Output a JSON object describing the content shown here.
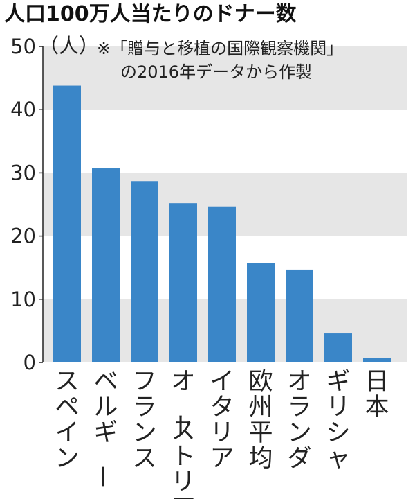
{
  "chart_data": {
    "type": "bar",
    "title": "人口100万人当たりのドナー数",
    "unit_label": "（人）",
    "note_lines": [
      "※「贈与と移植の国際観察機関」",
      "の2016年データから作製"
    ],
    "categories": [
      "スペイン",
      "ベルギー",
      "フランス",
      "オーストリア",
      "イタリア",
      "欧州平均",
      "オランダ",
      "ギリシャ",
      "日本"
    ],
    "values": [
      43.8,
      30.7,
      28.7,
      25.2,
      24.7,
      15.7,
      14.7,
      4.6,
      0.7
    ],
    "ylim": [
      0,
      50
    ],
    "yticks": [
      0,
      10,
      20,
      30,
      40,
      50
    ],
    "xlabel": "",
    "ylabel": "",
    "bar_color": "#3a86c8",
    "band_color": "#e6e6e6",
    "grid": "alternating horizontal bands",
    "legend": "none"
  }
}
